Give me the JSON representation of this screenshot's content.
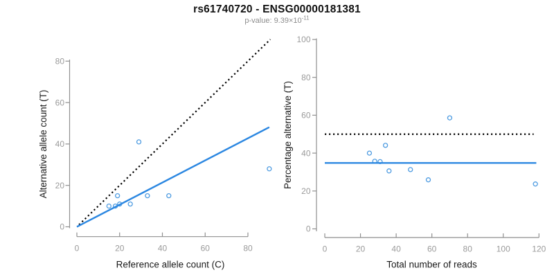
{
  "header": {
    "title": "rs61740720 - ENSG00000181381",
    "subtitle_base": "p-value: 9.39×10",
    "subtitle_exponent": "-11"
  },
  "colors": {
    "fit_line_blue": "#2B87E1",
    "point_blue": "#4D9BE1",
    "dotted_line_black": "#000000",
    "axis_gray": "#8F8F8F",
    "tick_label_gray": "#9A9A9A",
    "axis_title_color": "#1A1A1A"
  },
  "chart_data": [
    {
      "type": "scatter",
      "name": "ref-vs-alt-allele-count-plot",
      "xlabel": "Reference allele count (C)",
      "ylabel": "Alternative allele count (T)",
      "xlim": [
        0,
        90
      ],
      "ylim": [
        0,
        90
      ],
      "xticks": [
        0,
        20,
        40,
        60,
        80
      ],
      "yticks": [
        0,
        20,
        40,
        60,
        80
      ],
      "grid": false,
      "legend": null,
      "points": [
        [
          15,
          10
        ],
        [
          18,
          10
        ],
        [
          19,
          15
        ],
        [
          20,
          11
        ],
        [
          25,
          11
        ],
        [
          29,
          41
        ],
        [
          33,
          15
        ],
        [
          43,
          15
        ],
        [
          90,
          28
        ]
      ],
      "lines": [
        {
          "name": "identity-line",
          "style": "dotted",
          "color_key": "dotted_line_black",
          "x1": 1,
          "y1": 1,
          "x2": 90.5,
          "y2": 90.5
        },
        {
          "name": "fit-line",
          "style": "solid",
          "color_key": "fit_line_blue",
          "x1": 0,
          "y1": 0,
          "x2": 90,
          "y2": 48.1
        }
      ]
    },
    {
      "type": "scatter",
      "name": "percentage-vs-total-reads-plot",
      "xlabel": "Total number of reads",
      "ylabel": "Percentage alternative (T)",
      "xlim": [
        0,
        120
      ],
      "ylim": [
        0,
        100
      ],
      "xticks": [
        0,
        20,
        40,
        60,
        80,
        100,
        120
      ],
      "yticks": [
        0,
        20,
        40,
        60,
        80,
        100
      ],
      "grid": false,
      "legend": null,
      "points": [
        [
          25,
          40
        ],
        [
          28,
          35.7
        ],
        [
          31,
          35.5
        ],
        [
          34,
          44.1
        ],
        [
          36,
          30.6
        ],
        [
          48,
          31.3
        ],
        [
          58,
          25.9
        ],
        [
          70,
          58.6
        ],
        [
          118,
          23.7
        ]
      ],
      "lines": [
        {
          "name": "fifty-percent-line",
          "style": "dotted",
          "color_key": "dotted_line_black",
          "x1": 0,
          "y1": 50,
          "x2": 117,
          "y2": 50
        },
        {
          "name": "mean-percentage-line",
          "style": "solid",
          "color_key": "fit_line_blue",
          "x1": 0,
          "y1": 34.8,
          "x2": 118.5,
          "y2": 34.8
        }
      ]
    }
  ]
}
